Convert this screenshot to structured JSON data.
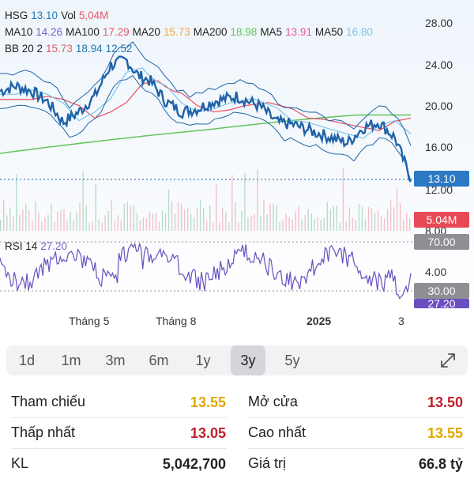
{
  "legend": {
    "line1": [
      {
        "text": "HSG",
        "color": "#222222"
      },
      {
        "text": "13.10",
        "color": "#1f77b4"
      },
      {
        "text": "Vol",
        "color": "#222222"
      },
      {
        "text": "5,04M",
        "color": "#e8576b"
      }
    ],
    "line2": [
      {
        "text": "MA10",
        "color": "#222222"
      },
      {
        "text": "14.26",
        "color": "#7b5fc9"
      },
      {
        "text": "MA100",
        "color": "#222222"
      },
      {
        "text": "17.29",
        "color": "#e8576b"
      },
      {
        "text": "MA20",
        "color": "#222222"
      },
      {
        "text": "15.73",
        "color": "#f0a64b"
      },
      {
        "text": "MA200",
        "color": "#222222"
      },
      {
        "text": "18.98",
        "color": "#62c45a"
      },
      {
        "text": "MA5",
        "color": "#222222"
      },
      {
        "text": "13.91",
        "color": "#e8578f"
      },
      {
        "text": "MA50",
        "color": "#222222"
      },
      {
        "text": "16.80",
        "color": "#7cc6ee"
      }
    ],
    "line3": [
      {
        "text": "BB 20 2",
        "color": "#222222"
      },
      {
        "text": "15.73",
        "color": "#e8576b"
      },
      {
        "text": "18.94",
        "color": "#1f77b4"
      },
      {
        "text": "12.52",
        "color": "#1f77b4"
      }
    ],
    "rsi": [
      {
        "text": "RSI 14",
        "color": "#222222"
      },
      {
        "text": "27.20",
        "color": "#7b5fc9"
      }
    ]
  },
  "axis": {
    "price_ticks": [
      "28.00",
      "24.00",
      "20.00",
      "16.00",
      "12.00",
      "8.00",
      "4.00"
    ],
    "x_labels": [
      "Tháng 5",
      "Tháng 8",
      "2025",
      "3"
    ]
  },
  "tags": {
    "price": "13.10",
    "volume": "5.04M",
    "rsi_high": "70.00",
    "rsi_low": "30.00",
    "rsi_value": "27.20"
  },
  "colors": {
    "price_line": "#1f63a8",
    "bollinger": "#1f63a8",
    "ma200": "#62c45a",
    "ma100": "#e8576b",
    "ma50": "#7cc6ee",
    "rsi_line": "#6a4fc0",
    "volume_up": "#b8dcc8",
    "volume_down": "#f4c0c8"
  },
  "tabs": [
    "1d",
    "1m",
    "3m",
    "6m",
    "1y",
    "3y",
    "5y"
  ],
  "active_tab": "3y",
  "stats": {
    "left": [
      {
        "label": "Tham chiếu",
        "value": "13.55",
        "color": "#e0a800"
      },
      {
        "label": "Thấp nhất",
        "value": "13.05",
        "color": "#c0202a"
      },
      {
        "label": "KL",
        "value": "5,042,700",
        "color": "#222222"
      }
    ],
    "right": [
      {
        "label": "Mở cửa",
        "value": "13.50",
        "color": "#c0202a"
      },
      {
        "label": "Cao nhất",
        "value": "13.55",
        "color": "#e0a800"
      },
      {
        "label": "Giá trị",
        "value": "66.8 tỷ",
        "color": "#222222"
      }
    ]
  }
}
